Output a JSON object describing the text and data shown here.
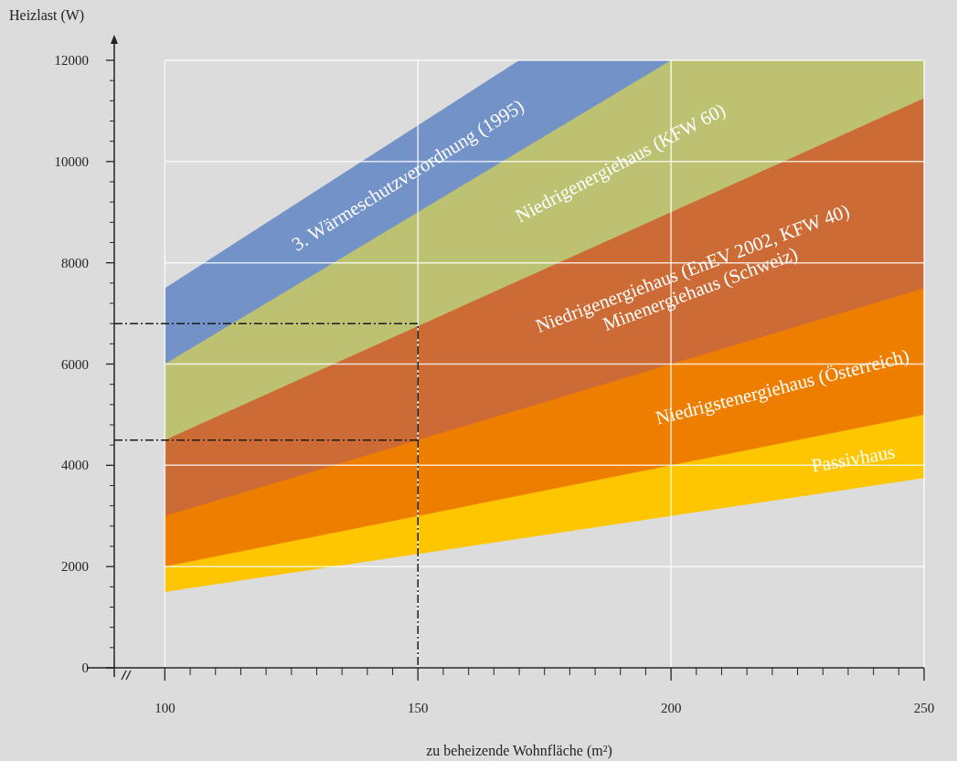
{
  "chart_data": {
    "type": "area",
    "xlabel": "zu beheizende Wohnfläche (m²)",
    "ylabel": "Heizlast (W)",
    "xlim": [
      90,
      250
    ],
    "ylim": [
      0,
      12000
    ],
    "xticks": [
      100,
      150,
      200,
      250
    ],
    "yticks": [
      0,
      2000,
      4000,
      6000,
      8000,
      10000,
      12000
    ],
    "grid": true,
    "series": [
      {
        "name": "3. Wärmeschutzverordnung (1995)",
        "color": "#7292c8",
        "x": [
          100,
          170,
          200
        ],
        "values": [
          7500,
          12000,
          12000
        ]
      },
      {
        "name": "Niedrigenergiehaus (KFW 60)",
        "color": "#bdc273",
        "x": [
          100,
          200,
          250
        ],
        "values": [
          6000,
          12000,
          12000
        ]
      },
      {
        "name": "Niedrigenergiehaus (EnEV 2002, KFW 40)\nMinenergiehaus (Schweiz)",
        "color": "#cc6b35",
        "x": [
          100,
          250
        ],
        "values": [
          4500,
          11250
        ]
      },
      {
        "name": "Niedrigstenergiehaus (Österreich)",
        "color": "#ee7e00",
        "x": [
          100,
          250
        ],
        "values": [
          3000,
          7500
        ]
      },
      {
        "name": "Passivhaus",
        "color": "#fdc600",
        "x": [
          100,
          250
        ],
        "values": [
          2000,
          5000
        ]
      },
      {
        "color": "#dcdcdc",
        "x": [
          100,
          250
        ],
        "values": [
          1500,
          3750
        ]
      },
      {
        "type": "line",
        "line_style": "dashed",
        "color": "#1a1a1a",
        "x": [
          90,
          150,
          150
        ],
        "values": [
          6800,
          6800,
          0
        ]
      },
      {
        "type": "line",
        "line_style": "dashed",
        "color": "#1a1a1a",
        "x": [
          90,
          150
        ],
        "values": [
          4500,
          4500
        ]
      }
    ]
  }
}
